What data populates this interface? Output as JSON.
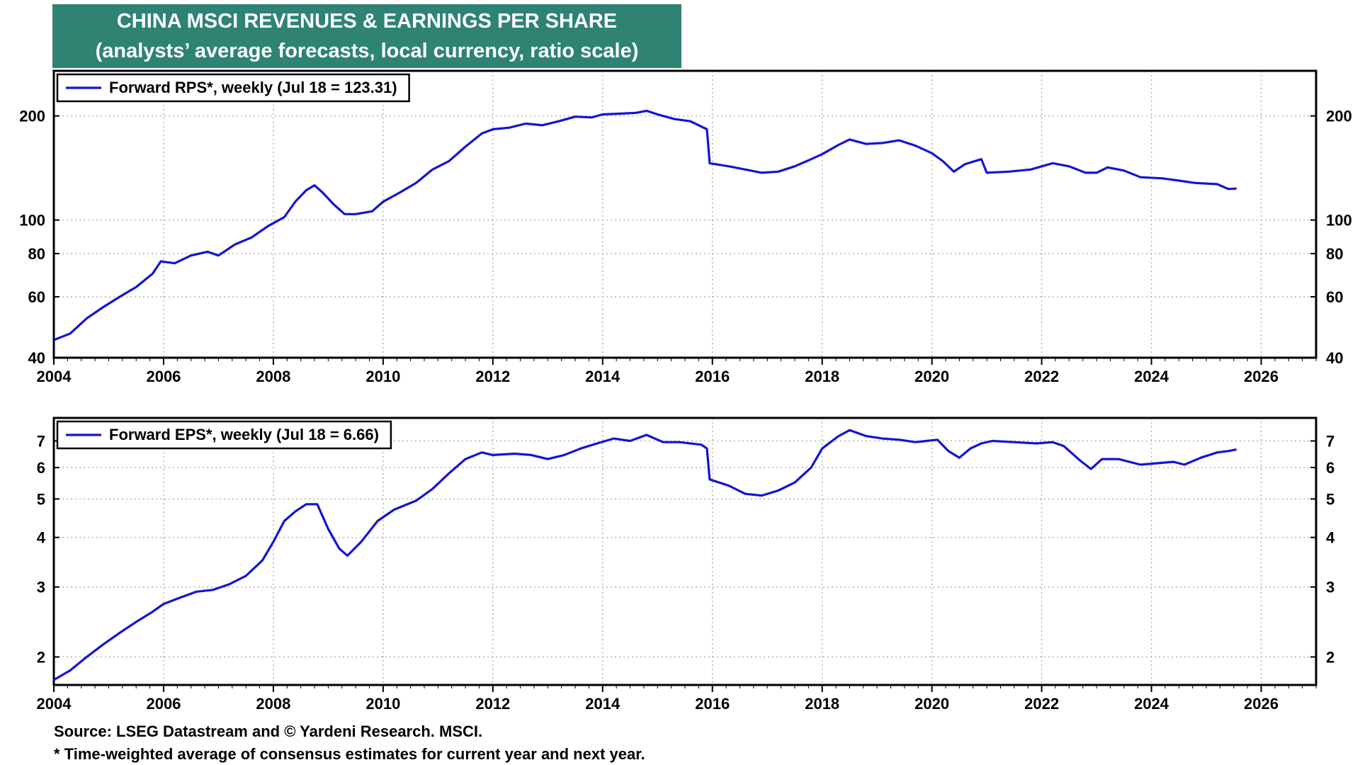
{
  "title": "CHINA MSCI REVENUES & EARNINGS PER SHARE",
  "subtitle": "(analysts’ average forecasts, local currency, ratio scale)",
  "footnotes": {
    "source": "Source: LSEG Datastream and © Yardeni Research. MSCI.",
    "note": "* Time-weighted average of consensus estimates for current year and next year."
  },
  "colors": {
    "title_bg": "#2e8373",
    "series": "#1414d2",
    "grid": "#b4b4b4"
  },
  "chart_data": [
    {
      "type": "line",
      "scale": "log",
      "x_ticks": [
        2004,
        2006,
        2008,
        2010,
        2012,
        2014,
        2016,
        2018,
        2020,
        2022,
        2024,
        2026
      ],
      "xlim": [
        2004,
        2027
      ],
      "ylim": [
        40,
        270
      ],
      "y_ticks": [
        40,
        60,
        80,
        100,
        200
      ],
      "grid": true,
      "legend_position": "top-left",
      "series": [
        {
          "name": "Forward RPS*, weekly (Jul 18 = 123.31)",
          "points": [
            [
              2004.0,
              45
            ],
            [
              2004.3,
              47
            ],
            [
              2004.6,
              52
            ],
            [
              2004.9,
              56
            ],
            [
              2005.2,
              60
            ],
            [
              2005.5,
              64
            ],
            [
              2005.8,
              70
            ],
            [
              2005.95,
              76
            ],
            [
              2006.2,
              75
            ],
            [
              2006.5,
              79
            ],
            [
              2006.8,
              81
            ],
            [
              2007.0,
              79
            ],
            [
              2007.3,
              85
            ],
            [
              2007.6,
              89
            ],
            [
              2007.9,
              96
            ],
            [
              2008.2,
              102
            ],
            [
              2008.4,
              113
            ],
            [
              2008.6,
              122
            ],
            [
              2008.75,
              126
            ],
            [
              2008.9,
              120
            ],
            [
              2009.1,
              111
            ],
            [
              2009.3,
              104
            ],
            [
              2009.5,
              104
            ],
            [
              2009.8,
              106
            ],
            [
              2010.0,
              113
            ],
            [
              2010.3,
              120
            ],
            [
              2010.6,
              128
            ],
            [
              2010.9,
              140
            ],
            [
              2011.2,
              148
            ],
            [
              2011.5,
              163
            ],
            [
              2011.8,
              178
            ],
            [
              2012.0,
              183
            ],
            [
              2012.3,
              185
            ],
            [
              2012.6,
              190
            ],
            [
              2012.9,
              188
            ],
            [
              2013.2,
              193
            ],
            [
              2013.5,
              199
            ],
            [
              2013.8,
              198
            ],
            [
              2014.0,
              202
            ],
            [
              2014.3,
              203
            ],
            [
              2014.6,
              204
            ],
            [
              2014.8,
              207
            ],
            [
              2015.0,
              202
            ],
            [
              2015.3,
              196
            ],
            [
              2015.6,
              193
            ],
            [
              2015.9,
              183
            ],
            [
              2015.95,
              146
            ],
            [
              2016.3,
              143
            ],
            [
              2016.6,
              140
            ],
            [
              2016.9,
              137
            ],
            [
              2017.2,
              138
            ],
            [
              2017.5,
              143
            ],
            [
              2017.8,
              150
            ],
            [
              2018.0,
              155
            ],
            [
              2018.3,
              165
            ],
            [
              2018.5,
              171
            ],
            [
              2018.8,
              166
            ],
            [
              2019.1,
              167
            ],
            [
              2019.4,
              170
            ],
            [
              2019.7,
              164
            ],
            [
              2020.0,
              156
            ],
            [
              2020.2,
              148
            ],
            [
              2020.4,
              138
            ],
            [
              2020.6,
              145
            ],
            [
              2020.9,
              150
            ],
            [
              2021.0,
              137
            ],
            [
              2021.4,
              138
            ],
            [
              2021.8,
              140
            ],
            [
              2022.2,
              146
            ],
            [
              2022.5,
              143
            ],
            [
              2022.8,
              137
            ],
            [
              2023.0,
              137
            ],
            [
              2023.2,
              142
            ],
            [
              2023.5,
              139
            ],
            [
              2023.8,
              133
            ],
            [
              2024.2,
              132
            ],
            [
              2024.5,
              130
            ],
            [
              2024.8,
              128
            ],
            [
              2025.2,
              127
            ],
            [
              2025.4,
              123
            ],
            [
              2025.55,
              123.31
            ]
          ]
        }
      ]
    },
    {
      "type": "line",
      "scale": "log",
      "x_ticks": [
        2004,
        2006,
        2008,
        2010,
        2012,
        2014,
        2016,
        2018,
        2020,
        2022,
        2024,
        2026
      ],
      "xlim": [
        2004,
        2027
      ],
      "ylim": [
        1.7,
        8.0
      ],
      "y_ticks": [
        2,
        3,
        4,
        5,
        6,
        7
      ],
      "grid": true,
      "legend_position": "top-left",
      "series": [
        {
          "name": "Forward EPS*, weekly (Jul 18 = 6.66)",
          "points": [
            [
              2004.0,
              1.75
            ],
            [
              2004.3,
              1.85
            ],
            [
              2004.6,
              2.0
            ],
            [
              2004.9,
              2.15
            ],
            [
              2005.2,
              2.3
            ],
            [
              2005.5,
              2.45
            ],
            [
              2005.8,
              2.6
            ],
            [
              2006.0,
              2.72
            ],
            [
              2006.3,
              2.82
            ],
            [
              2006.6,
              2.92
            ],
            [
              2006.9,
              2.95
            ],
            [
              2007.2,
              3.05
            ],
            [
              2007.5,
              3.2
            ],
            [
              2007.8,
              3.5
            ],
            [
              2008.0,
              3.9
            ],
            [
              2008.2,
              4.4
            ],
            [
              2008.4,
              4.65
            ],
            [
              2008.6,
              4.85
            ],
            [
              2008.8,
              4.85
            ],
            [
              2009.0,
              4.2
            ],
            [
              2009.2,
              3.75
            ],
            [
              2009.35,
              3.6
            ],
            [
              2009.6,
              3.9
            ],
            [
              2009.9,
              4.4
            ],
            [
              2010.2,
              4.7
            ],
            [
              2010.6,
              4.95
            ],
            [
              2010.9,
              5.3
            ],
            [
              2011.2,
              5.8
            ],
            [
              2011.5,
              6.3
            ],
            [
              2011.8,
              6.55
            ],
            [
              2012.0,
              6.45
            ],
            [
              2012.4,
              6.5
            ],
            [
              2012.7,
              6.45
            ],
            [
              2013.0,
              6.3
            ],
            [
              2013.3,
              6.45
            ],
            [
              2013.6,
              6.7
            ],
            [
              2013.9,
              6.9
            ],
            [
              2014.2,
              7.1
            ],
            [
              2014.5,
              7.0
            ],
            [
              2014.8,
              7.25
            ],
            [
              2015.1,
              6.95
            ],
            [
              2015.4,
              6.95
            ],
            [
              2015.8,
              6.85
            ],
            [
              2015.9,
              6.7
            ],
            [
              2015.95,
              5.6
            ],
            [
              2016.3,
              5.4
            ],
            [
              2016.6,
              5.15
            ],
            [
              2016.9,
              5.1
            ],
            [
              2017.2,
              5.25
            ],
            [
              2017.5,
              5.5
            ],
            [
              2017.8,
              6.0
            ],
            [
              2018.0,
              6.7
            ],
            [
              2018.3,
              7.2
            ],
            [
              2018.5,
              7.45
            ],
            [
              2018.8,
              7.2
            ],
            [
              2019.1,
              7.1
            ],
            [
              2019.4,
              7.05
            ],
            [
              2019.7,
              6.95
            ],
            [
              2019.9,
              7.0
            ],
            [
              2020.1,
              7.05
            ],
            [
              2020.3,
              6.6
            ],
            [
              2020.5,
              6.35
            ],
            [
              2020.7,
              6.7
            ],
            [
              2020.9,
              6.9
            ],
            [
              2021.1,
              7.0
            ],
            [
              2021.5,
              6.95
            ],
            [
              2021.9,
              6.9
            ],
            [
              2022.2,
              6.95
            ],
            [
              2022.4,
              6.8
            ],
            [
              2022.7,
              6.25
            ],
            [
              2022.9,
              5.95
            ],
            [
              2023.1,
              6.3
            ],
            [
              2023.4,
              6.3
            ],
            [
              2023.8,
              6.1
            ],
            [
              2024.1,
              6.15
            ],
            [
              2024.4,
              6.2
            ],
            [
              2024.6,
              6.1
            ],
            [
              2024.9,
              6.35
            ],
            [
              2025.2,
              6.55
            ],
            [
              2025.4,
              6.6
            ],
            [
              2025.55,
              6.66
            ]
          ]
        }
      ]
    }
  ]
}
